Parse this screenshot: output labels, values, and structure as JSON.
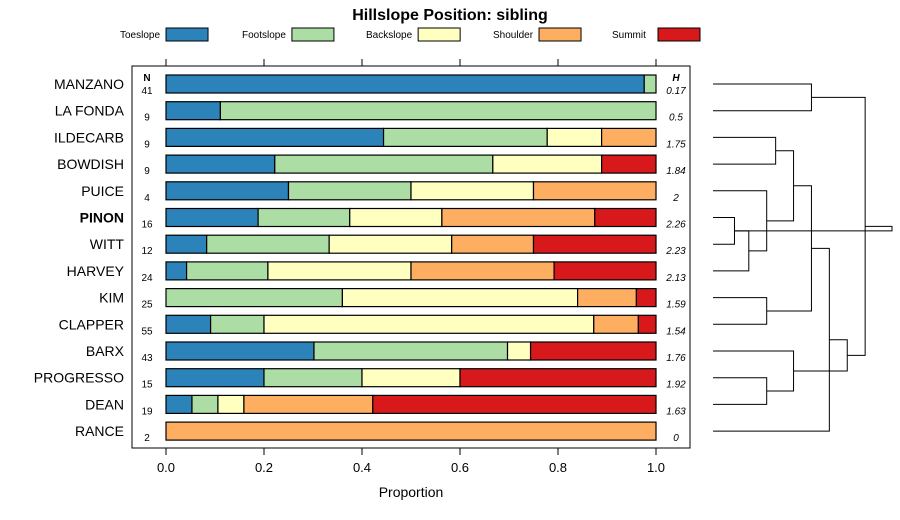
{
  "chart_data": {
    "type": "bar",
    "stacked": true,
    "orientation": "horizontal",
    "title": "Hillslope Position: sibling",
    "xlabel": "Proportion",
    "xlim": [
      0,
      1
    ],
    "x_ticks": [
      "0.0",
      "0.2",
      "0.4",
      "0.6",
      "0.8",
      "1.0"
    ],
    "legend": [
      {
        "name": "Toeslope",
        "color": "#2b83ba"
      },
      {
        "name": "Footslope",
        "color": "#abdda4"
      },
      {
        "name": "Backslope",
        "color": "#ffffbf"
      },
      {
        "name": "Shoulder",
        "color": "#fdae61"
      },
      {
        "name": "Summit",
        "color": "#d7191c"
      }
    ],
    "n_header": "N",
    "h_header": "H",
    "rows": [
      {
        "name": "MANZANO",
        "n": "41",
        "h": "0.17",
        "bold": false,
        "values": [
          0.976,
          0.024,
          0,
          0,
          0
        ]
      },
      {
        "name": "LA FONDA",
        "n": "9",
        "h": "0.5",
        "bold": false,
        "values": [
          0.111,
          0.889,
          0,
          0,
          0
        ]
      },
      {
        "name": "ILDECARB",
        "n": "9",
        "h": "1.75",
        "bold": false,
        "values": [
          0.444,
          0.334,
          0.111,
          0.111,
          0
        ]
      },
      {
        "name": "BOWDISH",
        "n": "9",
        "h": "1.84",
        "bold": false,
        "values": [
          0.222,
          0.445,
          0.222,
          0,
          0.111
        ]
      },
      {
        "name": "PUICE",
        "n": "4",
        "h": "2",
        "bold": false,
        "values": [
          0.25,
          0.25,
          0.25,
          0.25,
          0
        ]
      },
      {
        "name": "PINON",
        "n": "16",
        "h": "2.26",
        "bold": true,
        "values": [
          0.188,
          0.187,
          0.188,
          0.312,
          0.125
        ]
      },
      {
        "name": "WITT",
        "n": "12",
        "h": "2.23",
        "bold": false,
        "values": [
          0.083,
          0.25,
          0.25,
          0.167,
          0.25
        ]
      },
      {
        "name": "HARVEY",
        "n": "24",
        "h": "2.13",
        "bold": false,
        "values": [
          0.042,
          0.166,
          0.292,
          0.292,
          0.208
        ]
      },
      {
        "name": "KIM",
        "n": "25",
        "h": "1.59",
        "bold": false,
        "values": [
          0,
          0.36,
          0.48,
          0.12,
          0.04
        ]
      },
      {
        "name": "CLAPPER",
        "n": "55",
        "h": "1.54",
        "bold": false,
        "values": [
          0.091,
          0.109,
          0.673,
          0.091,
          0.036
        ]
      },
      {
        "name": "BARX",
        "n": "43",
        "h": "1.76",
        "bold": false,
        "values": [
          0.302,
          0.395,
          0.047,
          0,
          0.256
        ]
      },
      {
        "name": "PROGRESSO",
        "n": "15",
        "h": "1.92",
        "bold": false,
        "values": [
          0.2,
          0.2,
          0.2,
          0,
          0.4
        ]
      },
      {
        "name": "DEAN",
        "n": "19",
        "h": "1.63",
        "bold": false,
        "values": [
          0.053,
          0.053,
          0.053,
          0.263,
          0.578
        ]
      },
      {
        "name": "RANCE",
        "n": "2",
        "h": "0",
        "bold": false,
        "values": [
          0,
          0,
          0,
          1.0,
          0
        ]
      }
    ],
    "dendrogram_merges": [
      [
        5,
        6,
        0.12
      ],
      [
        7,
        14,
        0.2
      ],
      [
        4,
        15,
        0.3
      ],
      [
        8,
        9,
        0.3
      ],
      [
        2,
        3,
        0.35
      ],
      [
        18,
        16,
        0.45
      ],
      [
        11,
        12,
        0.3
      ],
      [
        10,
        20,
        0.45
      ],
      [
        17,
        19,
        0.55
      ],
      [
        22,
        13,
        0.65
      ],
      [
        21,
        23,
        0.75
      ],
      [
        0,
        1,
        0.55
      ],
      [
        25,
        24,
        0.85
      ],
      [
        26,
        14,
        1.0
      ]
    ]
  }
}
